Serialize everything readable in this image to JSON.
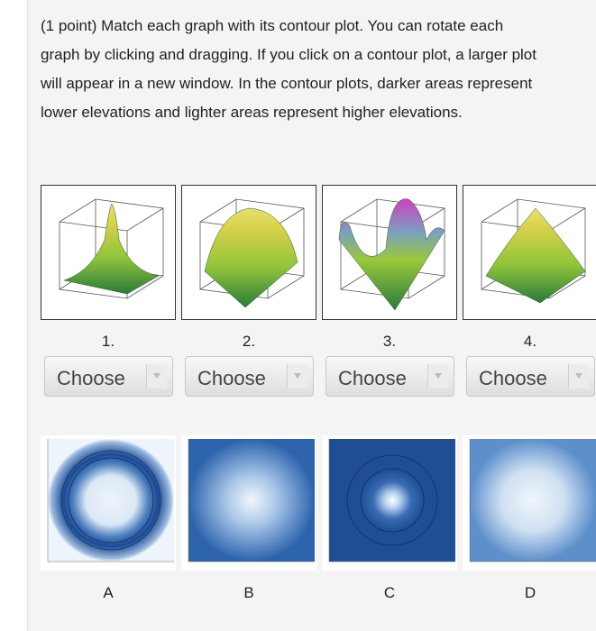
{
  "question": "(1 point) Match each graph with its contour plot. You can rotate each graph by clicking and dragging. If you click on a contour plot, a larger plot will appear in a new window. In the contour plots, darker areas represent lower elevations and lighter areas represent higher elevations.",
  "graphs": [
    {
      "label": "1."
    },
    {
      "label": "2."
    },
    {
      "label": "3."
    },
    {
      "label": "4."
    }
  ],
  "dropdowns": [
    {
      "placeholder": "Choose"
    },
    {
      "placeholder": "Choose"
    },
    {
      "placeholder": "Choose"
    },
    {
      "placeholder": "Choose"
    }
  ],
  "contours": [
    {
      "label": "A"
    },
    {
      "label": "B"
    },
    {
      "label": "C"
    },
    {
      "label": "D"
    }
  ]
}
